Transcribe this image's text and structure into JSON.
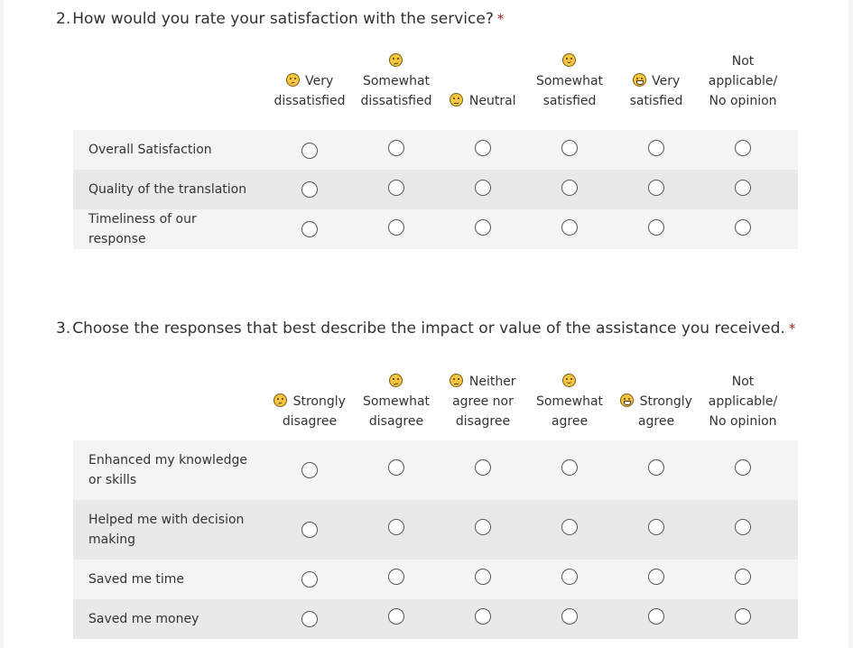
{
  "q2": {
    "number": "2.",
    "title": "How would you rate your satisfaction with the service?",
    "required_mark": "*",
    "columns": [
      {
        "line1": "Very",
        "line2": "dissatisfied",
        "emoji": "frown-icon"
      },
      {
        "line1": "Somewhat",
        "line2": "dissatisfied",
        "emoji": "confused-icon"
      },
      {
        "line1": "Neutral",
        "line2": "",
        "emoji": "neutral-face-icon"
      },
      {
        "line1": "Somewhat",
        "line2": "satisfied",
        "emoji": "smile-icon"
      },
      {
        "line1": "Very",
        "line2": "satisfied",
        "emoji": "grin-icon"
      },
      {
        "line1": "Not",
        "line2": "applicable/",
        "line3": "No opinion",
        "emoji": ""
      }
    ],
    "rows": [
      "Overall Satisfaction",
      "Quality of the translation",
      "Timeliness of our response"
    ]
  },
  "q3": {
    "number": "3.",
    "title": "Choose the responses that best describe the impact or value of the assistance you received.",
    "required_mark": "*",
    "columns": [
      {
        "line1": "Strongly",
        "line2": "disagree",
        "emoji": "frown-icon"
      },
      {
        "line1": "Somewhat",
        "line2": "disagree",
        "emoji": "confused-icon"
      },
      {
        "line1": "Neither",
        "line2": "agree nor",
        "line3": "disagree",
        "emoji": "neutral-face-icon"
      },
      {
        "line1": "Somewhat",
        "line2": "agree",
        "emoji": "smile-icon"
      },
      {
        "line1": "Strongly",
        "line2": "agree",
        "emoji": "grin-icon"
      },
      {
        "line1": "Not",
        "line2": "applicable/",
        "line3": "No opinion",
        "emoji": ""
      }
    ],
    "rows": [
      "Enhanced my knowledge or skills",
      "Helped me with decision making",
      "Saved me time",
      "Saved me money"
    ]
  }
}
